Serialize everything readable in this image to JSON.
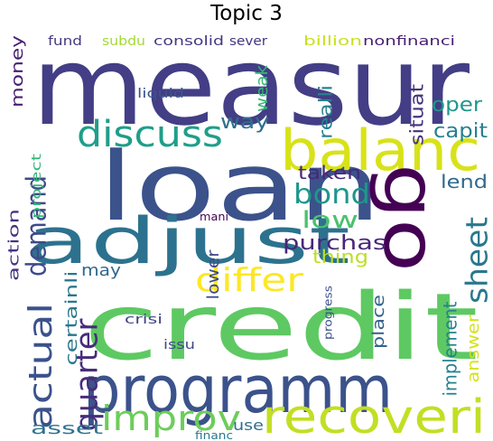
{
  "title": "Topic 3",
  "words": [
    {
      "text": "measur",
      "color": "#433e85"
    },
    {
      "text": "credit",
      "color": "#5ec962"
    },
    {
      "text": "loan",
      "color": "#3b528b"
    },
    {
      "text": "adjust",
      "color": "#2c728e"
    },
    {
      "text": "programm",
      "color": "#3b528b"
    },
    {
      "text": "balanc",
      "color": "#d8e219"
    },
    {
      "text": "go",
      "color": "#440154"
    },
    {
      "text": "recoveri",
      "color": "#c2df23"
    },
    {
      "text": "discuss",
      "color": "#1f9e89"
    },
    {
      "text": "improv",
      "color": "#6ccd5a"
    },
    {
      "text": "actual",
      "color": "#3b528b"
    },
    {
      "text": "quarter",
      "color": "#472d7b"
    },
    {
      "text": "demand",
      "color": "#3e4a89"
    },
    {
      "text": "differ",
      "color": "#fde725"
    },
    {
      "text": "sheet",
      "color": "#2a788e"
    },
    {
      "text": "bond",
      "color": "#1f968b"
    },
    {
      "text": "low",
      "color": "#4ac16d"
    },
    {
      "text": "purchas",
      "color": "#482677"
    },
    {
      "text": "way",
      "color": "#2d708e"
    },
    {
      "text": "taken",
      "color": "#482878"
    },
    {
      "text": "lend",
      "color": "#31688e"
    },
    {
      "text": "thing",
      "color": "#bddf26"
    },
    {
      "text": "oper",
      "color": "#1f988b"
    },
    {
      "text": "capit",
      "color": "#277f8e"
    },
    {
      "text": "situat",
      "color": "#46327e"
    },
    {
      "text": "realli",
      "color": "#26828e"
    },
    {
      "text": "weak",
      "color": "#35b779"
    },
    {
      "text": "money",
      "color": "#481f70"
    },
    {
      "text": "action",
      "color": "#46337f"
    },
    {
      "text": "project",
      "color": "#35b779"
    },
    {
      "text": "certainli",
      "color": "#2a788e"
    },
    {
      "text": "asset",
      "color": "#2c718e"
    },
    {
      "text": "may",
      "color": "#31688e"
    },
    {
      "text": "lower",
      "color": "#3e4989"
    },
    {
      "text": "implement",
      "color": "#26828e"
    },
    {
      "text": "answer",
      "color": "#d5e21a"
    },
    {
      "text": "place",
      "color": "#33638d"
    },
    {
      "text": "progress",
      "color": "#3b528b"
    },
    {
      "text": "crisi",
      "color": "#414487"
    },
    {
      "text": "issu",
      "color": "#3f4788"
    },
    {
      "text": "use",
      "color": "#2e6e8e"
    },
    {
      "text": "financ",
      "color": "#29798e"
    },
    {
      "text": "mani",
      "color": "#440154"
    },
    {
      "text": "liquid",
      "color": "#3a548c"
    },
    {
      "text": "fund",
      "color": "#443a83"
    },
    {
      "text": "subdu",
      "color": "#a2da37"
    },
    {
      "text": "consolid",
      "color": "#453882"
    },
    {
      "text": "sever",
      "color": "#453781"
    },
    {
      "text": "billion",
      "color": "#c8e020"
    },
    {
      "text": "nonfinanci",
      "color": "#482071"
    }
  ]
}
